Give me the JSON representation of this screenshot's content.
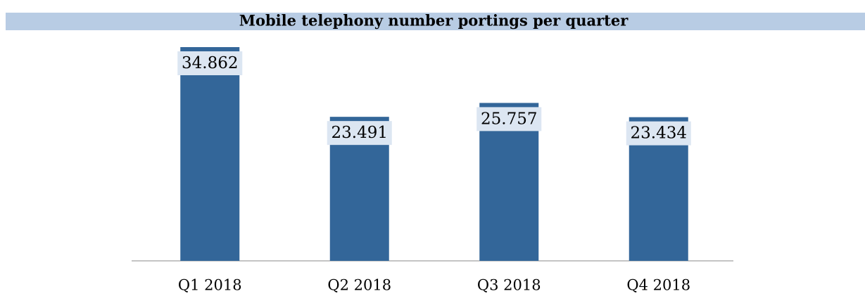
{
  "chart_data": {
    "type": "bar",
    "title": "Mobile telephony number portings per quarter",
    "categories": [
      "Q1 2018",
      "Q2 2018",
      "Q3 2018",
      "Q4 2018"
    ],
    "values": [
      34862,
      23491,
      25757,
      23434
    ],
    "value_labels": [
      "34.862",
      "23.491",
      "25.757",
      "23.434"
    ],
    "color": "#336699"
  }
}
